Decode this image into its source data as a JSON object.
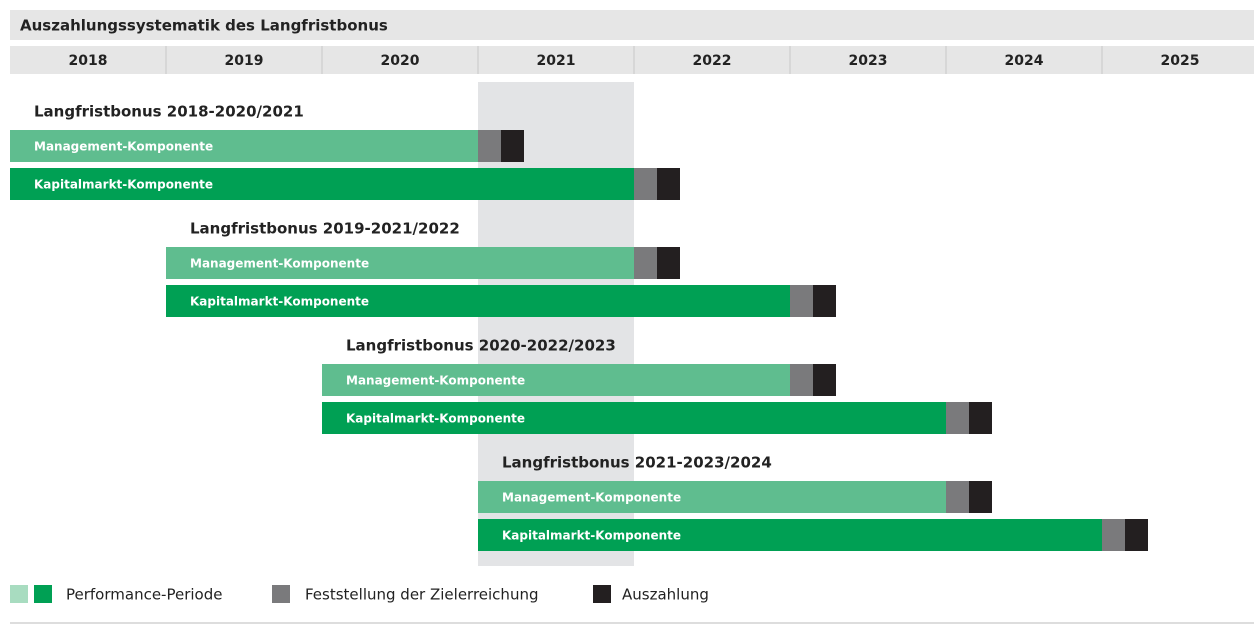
{
  "title": "Auszahlungssystematik des Langfristbonus",
  "years": [
    2018,
    2019,
    2020,
    2021,
    2022,
    2023,
    2024,
    2025
  ],
  "groups": [
    {
      "title": "Langfristbonus 2018-2020/2021",
      "components": [
        "Management-Komponente",
        "Kapitalmarkt-Komponente"
      ]
    },
    {
      "title": "Langfristbonus 2019-2021/2022",
      "components": [
        "Management-Komponente",
        "Kapitalmarkt-Komponente"
      ]
    },
    {
      "title": "Langfristbonus 2020-2022/2023",
      "components": [
        "Management-Komponente",
        "Kapitalmarkt-Komponente"
      ]
    },
    {
      "title": "Langfristbonus 2021-2023/2024",
      "components": [
        "Management-Komponente",
        "Kapitalmarkt-Komponente"
      ]
    }
  ],
  "legend": [
    "Performance-Periode",
    "Feststellung der Zielerreichung",
    "Auszahlung"
  ]
}
